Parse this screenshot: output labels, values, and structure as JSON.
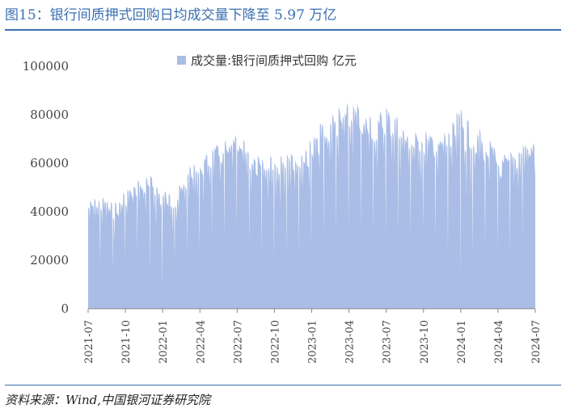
{
  "figure": {
    "title": "图15：银行间质押式回购日均成交量下降至 5.97 万亿",
    "source": "资料来源：Wind,中国银河证券研究院"
  },
  "chart_data": {
    "type": "area",
    "color": "#a9bde6",
    "ylim": [
      0,
      100000
    ],
    "yticks": [
      0,
      20000,
      40000,
      60000,
      80000,
      100000
    ],
    "ytick_labels": [
      "0",
      "20000",
      "40000",
      "60000",
      "80000",
      "100000"
    ],
    "xtick_labels": [
      "2021-07",
      "2021-10",
      "2022-01",
      "2022-04",
      "2022-07",
      "2022-10",
      "2023-01",
      "2023-04",
      "2023-07",
      "2023-10",
      "2024-01",
      "2024-04",
      "2024-07"
    ],
    "legend": "成交量:银行间质押式回购 亿元",
    "legend_position": "top",
    "series": [
      {
        "name": "成交量:银行间质押式回购 亿元",
        "monthly_start": [
          "2021-07",
          "2021-08",
          "2021-09",
          "2021-10",
          "2021-11",
          "2021-12",
          "2022-01",
          "2022-02",
          "2022-03",
          "2022-04",
          "2022-05",
          "2022-06",
          "2022-07",
          "2022-08",
          "2022-09",
          "2022-10",
          "2022-11",
          "2022-12",
          "2023-01",
          "2023-02",
          "2023-03",
          "2023-04",
          "2023-05",
          "2023-06",
          "2023-07",
          "2023-08",
          "2023-09",
          "2023-10",
          "2023-11",
          "2023-12",
          "2024-01",
          "2024-02",
          "2024-03",
          "2024-04",
          "2024-05",
          "2024-06",
          "2024-07"
        ],
        "high": [
          45000,
          47000,
          44000,
          50000,
          55000,
          56000,
          52000,
          48000,
          58000,
          63000,
          68000,
          70000,
          72000,
          68000,
          62000,
          66000,
          70000,
          68000,
          72000,
          80000,
          84000,
          86000,
          84000,
          82000,
          87000,
          80000,
          74000,
          74000,
          75000,
          76000,
          84000,
          78000,
          72000,
          65000,
          66000,
          70000,
          69000
        ],
        "low": [
          20000,
          18000,
          16000,
          22000,
          24000,
          12000,
          8000,
          22000,
          24000,
          24000,
          30000,
          30000,
          34000,
          26000,
          22000,
          20000,
          24000,
          22000,
          26000,
          30000,
          30000,
          32000,
          33000,
          30000,
          30000,
          30000,
          30000,
          32000,
          28000,
          20000,
          9000,
          24000,
          26000,
          24000,
          22000,
          30000,
          59700
        ]
      }
    ]
  }
}
